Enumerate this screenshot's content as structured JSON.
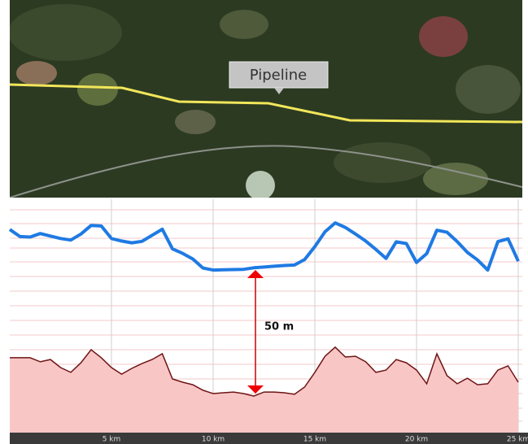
{
  "chart_data": {
    "type": "line",
    "annotations": [
      "Pipeline",
      "50 m"
    ],
    "x": [
      0,
      0.5,
      1,
      1.5,
      2,
      2.5,
      3,
      3.5,
      4,
      4.5,
      5,
      5.5,
      6,
      6.5,
      7,
      7.5,
      8,
      8.5,
      9,
      9.5,
      10,
      10.5,
      11,
      11.5,
      12,
      12.5,
      13,
      13.5,
      14,
      14.5,
      15,
      15.5,
      16,
      16.5,
      17,
      17.5,
      18,
      18.5,
      19,
      19.5,
      20,
      20.5,
      21,
      21.5,
      22,
      22.5,
      23,
      23.5,
      24,
      24.5,
      25
    ],
    "xlim": [
      0,
      25.2
    ],
    "xticks": [
      {
        "value": 5,
        "label": "5 km"
      },
      {
        "value": 10,
        "label": "10 km"
      },
      {
        "value": 15,
        "label": "15 km"
      },
      {
        "value": 20,
        "label": "20 km"
      },
      {
        "value": 25,
        "label": "25 km"
      }
    ],
    "ylim": [
      0,
      92.6
    ],
    "series": [
      {
        "color": "#1f7ae3",
        "area": false,
        "values": [
          80.6,
          77.8,
          77.6,
          79.0,
          78.0,
          77.0,
          76.4,
          78.8,
          82.2,
          82.0,
          77.0,
          76.0,
          75.3,
          75.9,
          78.3,
          80.7,
          72.9,
          71.1,
          68.9,
          65.3,
          64.5,
          64.6,
          64.7,
          64.8,
          65.4,
          65.7,
          66.0,
          66.3,
          66.5,
          68.7,
          73.8,
          79.7,
          83.2,
          81.4,
          78.8,
          76.0,
          72.7,
          69.1,
          75.7,
          75.0,
          67.5,
          71.0,
          80.3,
          79.5,
          75.8,
          71.5,
          68.5,
          64.5,
          75.8,
          76.9,
          68.0
        ]
      },
      {
        "color": "#6e1414",
        "area": true,
        "values": [
          29.7,
          29.7,
          29.7,
          28.1,
          29.0,
          25.8,
          23.9,
          27.7,
          32.9,
          29.7,
          25.8,
          23.2,
          25.5,
          27.4,
          29.0,
          31.3,
          21.3,
          20.0,
          19.0,
          16.8,
          15.5,
          15.8,
          16.1,
          15.5,
          14.5,
          16.1,
          16.1,
          15.8,
          15.2,
          18.1,
          23.9,
          30.3,
          33.9,
          30.0,
          30.3,
          28.1,
          23.9,
          24.8,
          29.0,
          27.7,
          24.8,
          19.4,
          31.3,
          22.6,
          19.4,
          21.6,
          19.0,
          19.4,
          24.8,
          26.5,
          20.0
        ]
      }
    ]
  }
}
